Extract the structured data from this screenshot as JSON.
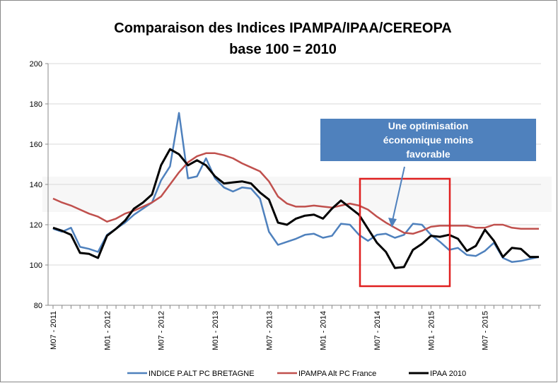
{
  "chart_data": {
    "type": "line",
    "title": "Comparaison des  Indices IPAMPA/IPAA/CEREOPA",
    "subtitle": "base 100 = 2010",
    "annotation": "Une optimisation économique moins favorable",
    "categories": [
      "M07 - 2011",
      null,
      null,
      null,
      null,
      null,
      "M01 - 2012",
      null,
      null,
      null,
      null,
      null,
      "M07 - 2012",
      null,
      null,
      null,
      null,
      null,
      "M01 - 2013",
      null,
      null,
      null,
      null,
      null,
      "M07 - 2013",
      null,
      null,
      null,
      null,
      null,
      "M01 - 2014",
      null,
      null,
      null,
      null,
      null,
      "M07 - 2014",
      null,
      null,
      null,
      null,
      null,
      "M01 - 2015",
      null,
      null,
      null,
      null,
      null,
      "M07 - 2015",
      null,
      null,
      null,
      null,
      null,
      null
    ],
    "series": [
      {
        "name": "INDICE P.ALT PC BRETAGNE",
        "color": "#4f81bd",
        "values": [
          118,
          116.5,
          118.5,
          109,
          108,
          106.5,
          115,
          118,
          121,
          125,
          128,
          131,
          142,
          149,
          175.5,
          143,
          144,
          153,
          143,
          138.5,
          136.5,
          138.5,
          138,
          133,
          116.5,
          110,
          111.5,
          113,
          115,
          115.5,
          113.5,
          114.5,
          120.5,
          120,
          115,
          112,
          115,
          115.5,
          113.5,
          115,
          120.5,
          120,
          115,
          111.5,
          107.5,
          108.5,
          105,
          104.5,
          107,
          111,
          103.5,
          101.5,
          102,
          103,
          104
        ]
      },
      {
        "name": "IPAMPA Alt PC France",
        "color": "#c0504d",
        "values": [
          133,
          131,
          129.5,
          127.5,
          125.5,
          124,
          121.5,
          123,
          125.5,
          127,
          129,
          131,
          134,
          140,
          146,
          151,
          154,
          155.5,
          155.5,
          154.5,
          153,
          150.5,
          148.5,
          146.5,
          141.5,
          134,
          130.5,
          129,
          129,
          129.5,
          129,
          128.5,
          129.5,
          130.5,
          129.5,
          127.5,
          124,
          121,
          118.5,
          116,
          115.5,
          117,
          119,
          119.5,
          119.5,
          119.5,
          119.5,
          118.5,
          118.5,
          120,
          120,
          118.5,
          118,
          118,
          118
        ]
      },
      {
        "name": "IPAA 2010",
        "color": "#000000",
        "values": [
          118.5,
          117,
          115,
          106,
          105.5,
          103.5,
          114.5,
          118,
          122,
          128,
          131,
          135,
          149.5,
          157.5,
          155,
          149.5,
          152,
          149.5,
          144,
          140.5,
          141,
          141.5,
          140.5,
          136,
          132.5,
          121,
          120,
          123,
          124.5,
          125,
          123,
          128,
          132,
          128.5,
          125,
          118,
          111,
          106.5,
          98.5,
          99,
          107.5,
          110.5,
          114.5,
          114,
          115,
          113,
          107,
          109.5,
          117.5,
          112,
          104,
          108.5,
          108,
          104,
          104
        ]
      }
    ],
    "ylim": [
      80,
      200
    ],
    "yticks": [
      80,
      100,
      120,
      140,
      160,
      180,
      200
    ],
    "grid": true
  }
}
